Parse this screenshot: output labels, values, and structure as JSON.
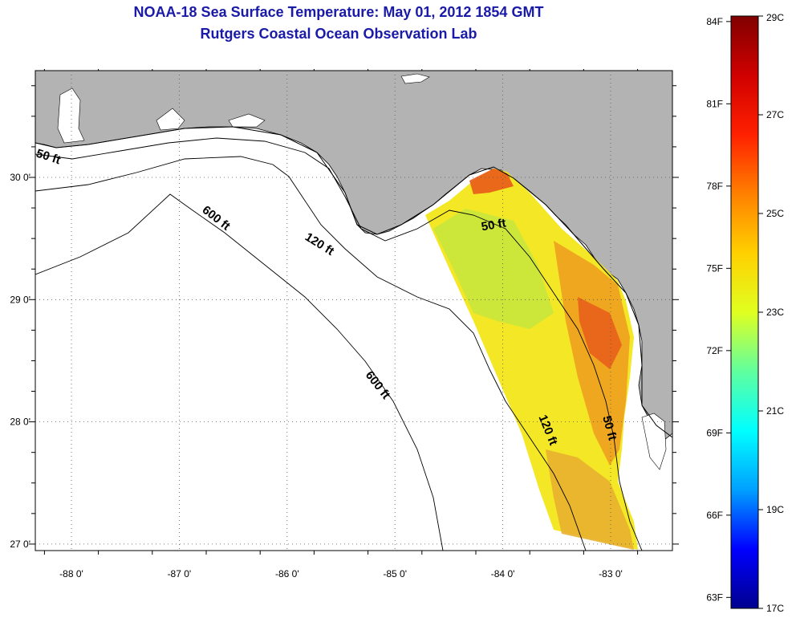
{
  "title": {
    "line1": "NOAA-18 Sea Surface Temperature:  May 01, 2012 1854 GMT",
    "line2": "Rutgers Coastal Ocean Observation Lab"
  },
  "map": {
    "lon_ticks": [
      {
        "value": -88,
        "label": "-88 0'"
      },
      {
        "value": -87,
        "label": "-87 0'"
      },
      {
        "value": -86,
        "label": "-86 0'"
      },
      {
        "value": -85,
        "label": "-85 0'"
      },
      {
        "value": -84,
        "label": "-84 0'"
      },
      {
        "value": -83,
        "label": "-83 0'"
      }
    ],
    "lat_ticks": [
      {
        "value": 30,
        "label": "30 0'"
      },
      {
        "value": 29,
        "label": "29 0'"
      },
      {
        "value": 28,
        "label": "28 0'"
      },
      {
        "value": 27,
        "label": "27 0'"
      }
    ],
    "contour_labels": [
      "50 ft",
      "600 ft",
      "120 ft",
      "50 ft",
      "600 ft",
      "120 ft",
      "50 ft"
    ],
    "colors": {
      "land": "#b3b3b3",
      "water": "#ffffff",
      "contour": "#000000"
    }
  },
  "colorbar": {
    "f_labels": [
      "84F",
      "81F",
      "78F",
      "75F",
      "72F",
      "69F",
      "66F",
      "63F"
    ],
    "c_labels": [
      "29C",
      "27C",
      "25C",
      "23C",
      "21C",
      "19C",
      "17C"
    ],
    "colormap": [
      "#00008f",
      "#0000ff",
      "#00a0ff",
      "#00ffff",
      "#60ff9f",
      "#e0ff20",
      "#ffd000",
      "#ff8000",
      "#ff2000",
      "#d00000",
      "#800000"
    ]
  }
}
